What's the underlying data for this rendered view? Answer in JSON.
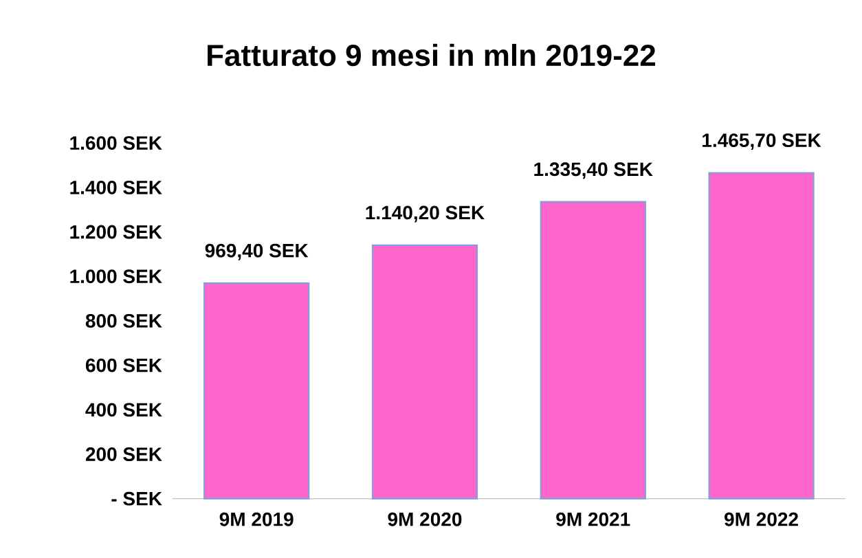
{
  "chart_data": {
    "type": "bar",
    "title": "Fatturato 9 mesi in mln 2019-22",
    "categories": [
      "9M 2019",
      "9M 2020",
      "9M 2021",
      "9M 2022"
    ],
    "values": [
      969.4,
      1140.2,
      1335.4,
      1465.7
    ],
    "value_labels": [
      "969,40 SEK",
      "1.140,20 SEK",
      "1.335,40 SEK",
      "1.465,70 SEK"
    ],
    "color": "#ff66cc",
    "ylim": [
      0,
      1600
    ],
    "yticks": [
      {
        "value": 0,
        "label": "- SEK"
      },
      {
        "value": 200,
        "label": "200 SEK"
      },
      {
        "value": 400,
        "label": "400 SEK"
      },
      {
        "value": 600,
        "label": "600 SEK"
      },
      {
        "value": 800,
        "label": "800 SEK"
      },
      {
        "value": 1000,
        "label": "1.000 SEK"
      },
      {
        "value": 1200,
        "label": "1.200 SEK"
      },
      {
        "value": 1400,
        "label": "1.400 SEK"
      },
      {
        "value": 1600,
        "label": "1.600 SEK"
      }
    ],
    "grid": false
  }
}
